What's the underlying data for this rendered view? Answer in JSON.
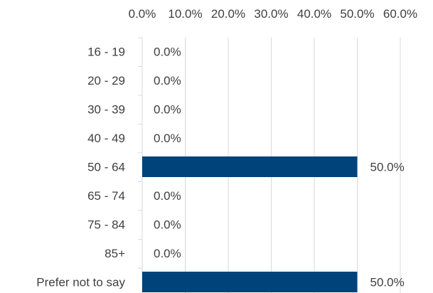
{
  "chart_data": {
    "type": "bar",
    "orientation": "horizontal",
    "x_axis_position": "top",
    "grid": true,
    "legend": "none",
    "xlim": [
      0,
      60
    ],
    "x_ticks": [
      "0.0%",
      "10.0%",
      "20.0%",
      "30.0%",
      "40.0%",
      "50.0%",
      "60.0%"
    ],
    "categories": [
      "16 - 19",
      "20 - 29",
      "30 - 39",
      "40 - 49",
      "50 - 64",
      "65 - 74",
      "75 - 84",
      "85+",
      "Prefer not to say"
    ],
    "values": [
      0,
      0,
      0,
      0,
      50,
      0,
      0,
      0,
      50
    ],
    "data_labels": [
      "0.0%",
      "0.0%",
      "0.0%",
      "0.0%",
      "50.0%",
      "0.0%",
      "0.0%",
      "0.0%",
      "50.0%"
    ],
    "bar_color": "#00427a",
    "grid_color": "#d9d9d9",
    "text_color": "#404040"
  }
}
